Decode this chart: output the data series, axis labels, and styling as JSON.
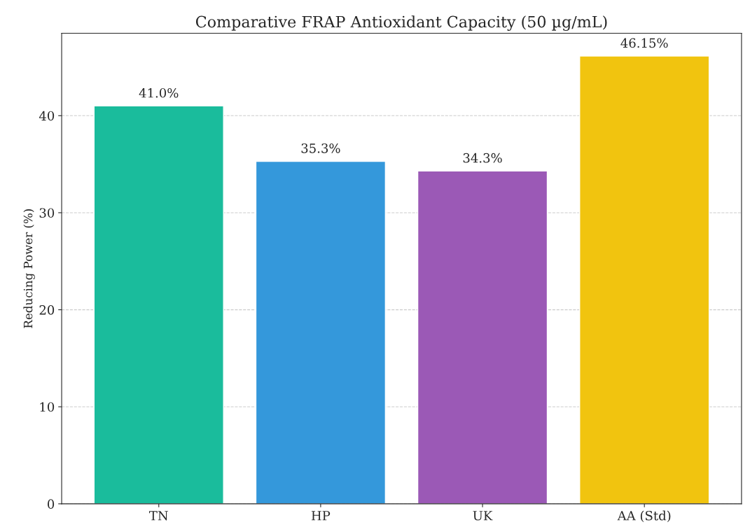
{
  "chart_data": {
    "type": "bar",
    "title": "Comparative FRAP Antioxidant Capacity (50 µg/mL)",
    "ylabel": "Reducing Power (%)",
    "categories": [
      "TN",
      "HP",
      "UK",
      "AA (Std)"
    ],
    "values": [
      41.0,
      35.3,
      34.3,
      46.15
    ],
    "colors": [
      "#1abc9c",
      "#3498db",
      "#9b59b6",
      "#f1c40f"
    ],
    "value_labels": [
      "41.0%",
      "35.3%",
      "34.3%",
      "46.15%"
    ],
    "ylim": [
      0,
      48.5
    ],
    "yticks": [
      0,
      10,
      20,
      30,
      40
    ],
    "grid": "y",
    "legend": false
  }
}
